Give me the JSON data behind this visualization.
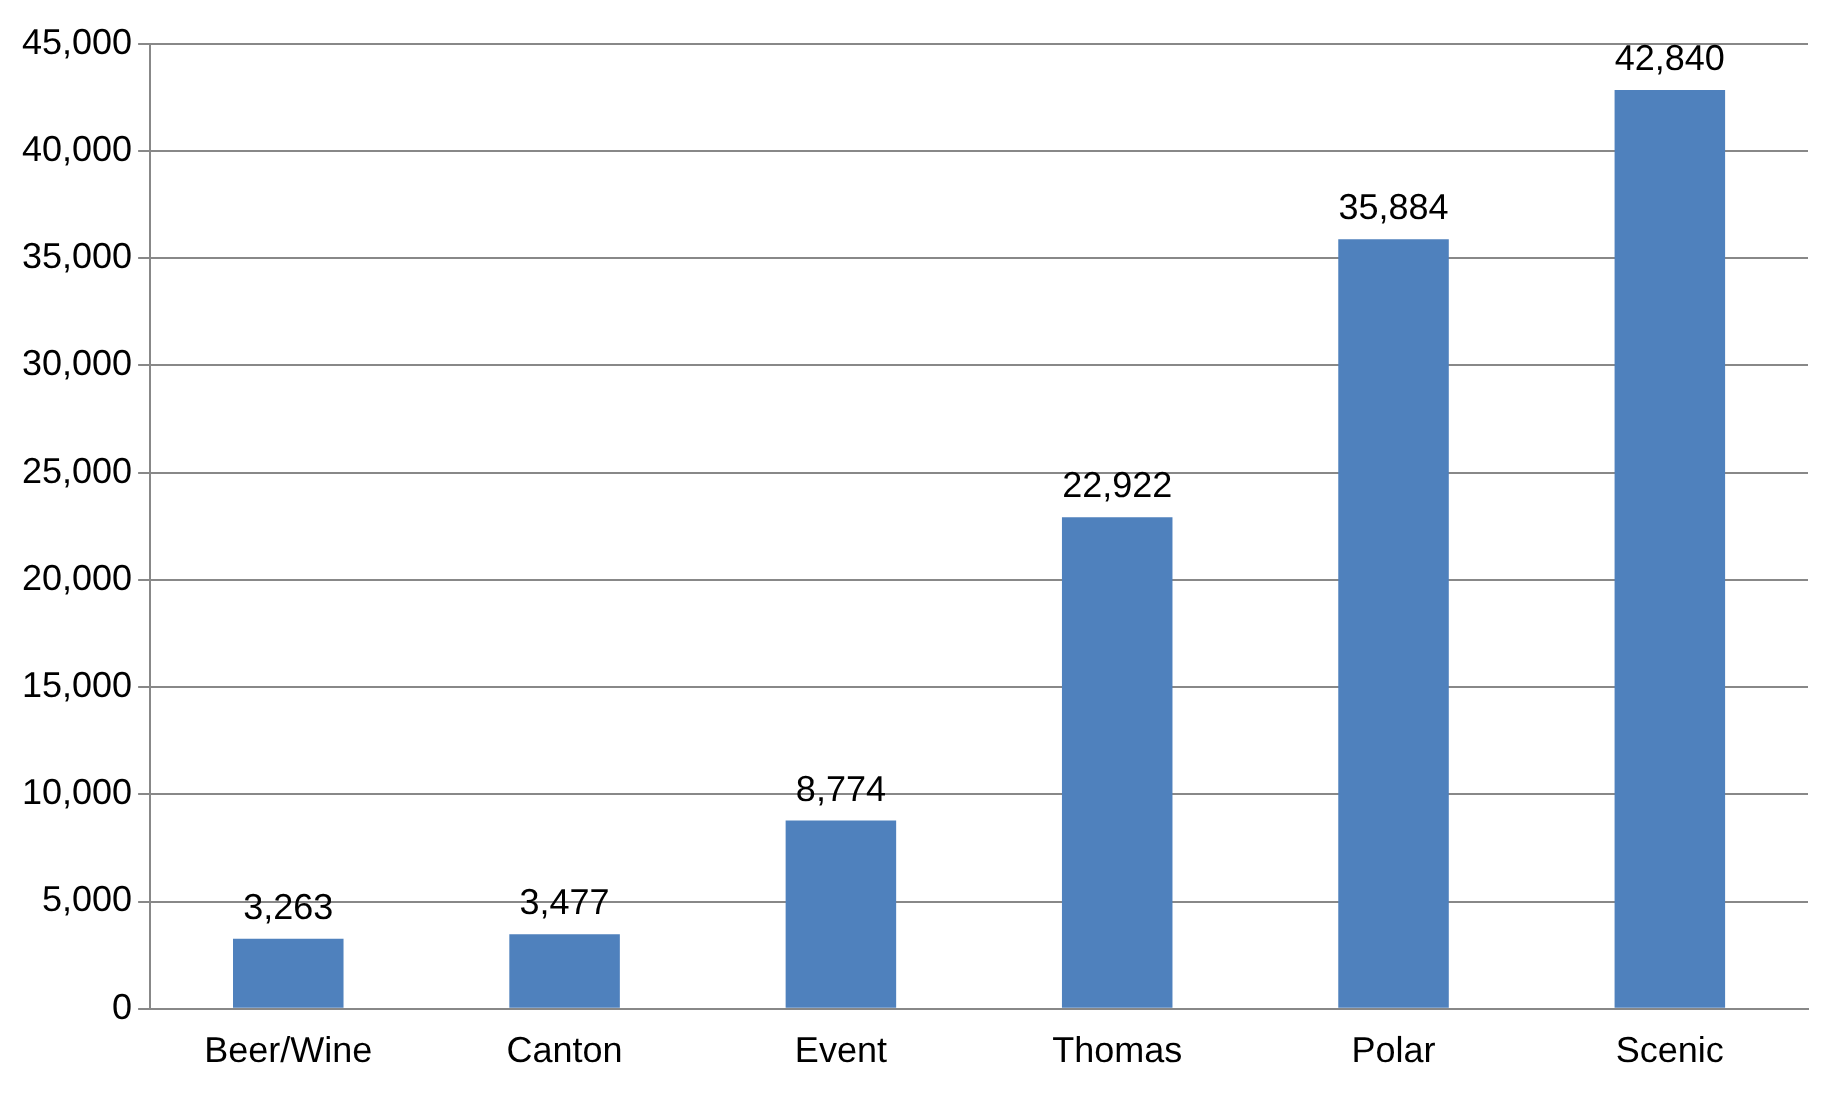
{
  "chart_data": {
    "type": "bar",
    "categories": [
      "Beer/Wine",
      "Canton",
      "Event",
      "Thomas",
      "Polar",
      "Scenic"
    ],
    "values": [
      3263,
      3477,
      8774,
      22922,
      35884,
      42840
    ],
    "color": "#4f81bd",
    "ylim": [
      0,
      45000
    ],
    "yticks": [
      {
        "value": 0,
        "label": "0"
      },
      {
        "value": 5000,
        "label": "5,000"
      },
      {
        "value": 10000,
        "label": "10,000"
      },
      {
        "value": 15000,
        "label": "15,000"
      },
      {
        "value": 20000,
        "label": "20,000"
      },
      {
        "value": 25000,
        "label": "25,000"
      },
      {
        "value": 30000,
        "label": "30,000"
      },
      {
        "value": 35000,
        "label": "35,000"
      },
      {
        "value": 40000,
        "label": "40,000"
      },
      {
        "value": 45000,
        "label": "45,000"
      }
    ],
    "value_labels": [
      "3,263",
      "3,477",
      "8,774",
      "22,922",
      "35,884",
      "42,840"
    ],
    "grid": "y",
    "legend": false
  }
}
